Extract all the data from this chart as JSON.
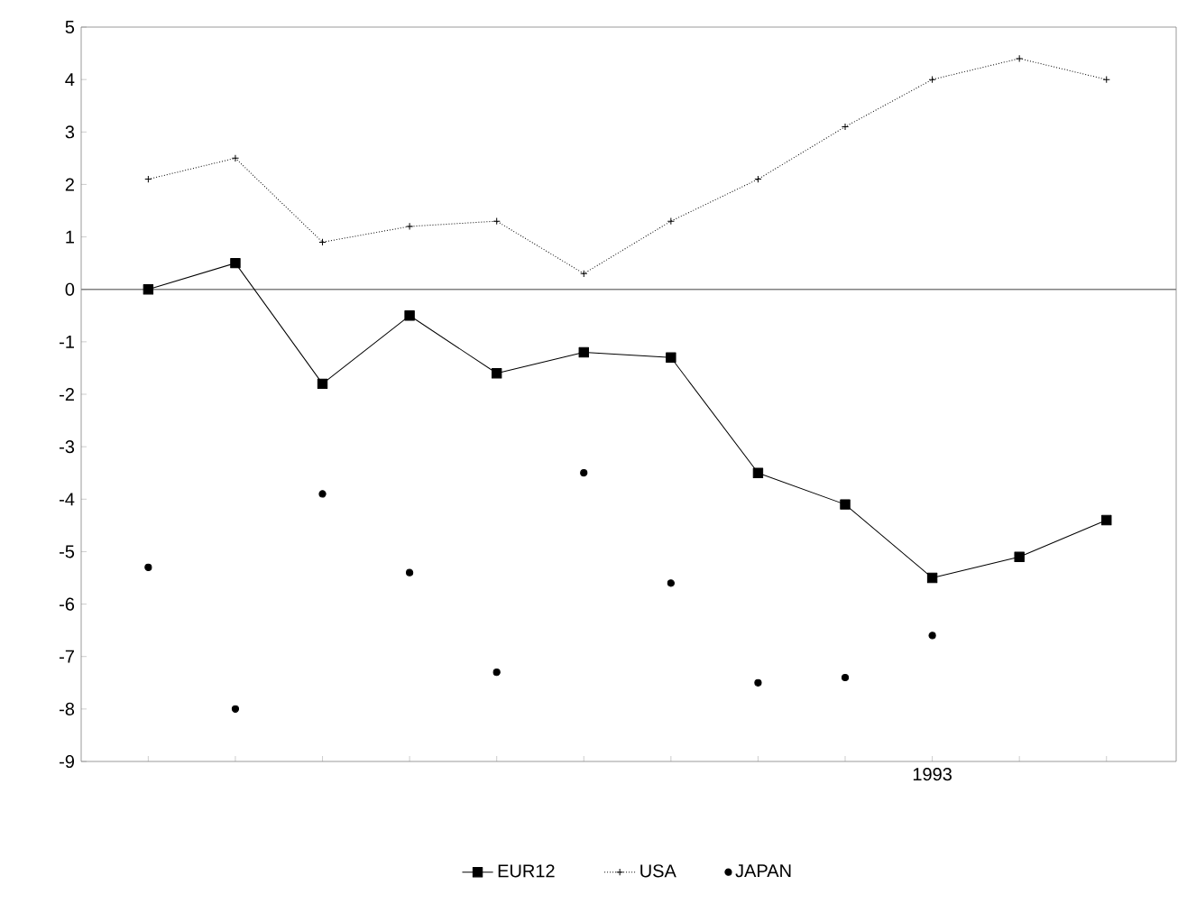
{
  "chart_data": {
    "type": "line",
    "categories": [
      null,
      null,
      null,
      null,
      null,
      null,
      null,
      null,
      null,
      "1993",
      null,
      null
    ],
    "series": [
      {
        "name": "EUR12",
        "color": "#000000",
        "marker": "square",
        "line_style": "solid",
        "values": [
          0,
          0.5,
          -1.8,
          -0.5,
          -1.6,
          -1.2,
          -1.3,
          -3.5,
          -4.1,
          -5.5,
          -5.1,
          -4.4
        ]
      },
      {
        "name": "USA",
        "color": "#000000",
        "marker": "cross",
        "line_style": "dotted",
        "values": [
          2.1,
          2.5,
          0.9,
          1.2,
          1.3,
          0.3,
          1.3,
          2.1,
          3.1,
          4.0,
          4.4,
          4.0
        ]
      },
      {
        "name": "JAPAN",
        "color": "#000000",
        "type": "scatter",
        "marker": "circle",
        "values": [
          -5.3,
          -8.0,
          -3.9,
          -5.4,
          -7.3,
          -3.5,
          -5.6,
          -7.5,
          -7.4,
          -6.6,
          null,
          null
        ]
      }
    ],
    "ylim": [
      -9,
      5
    ],
    "yticks": [
      -9,
      -8,
      -7,
      -6,
      -5,
      -4,
      -3,
      -2,
      -1,
      0,
      1,
      2,
      3,
      4,
      5
    ],
    "ref_lines": [
      {
        "axis": "y",
        "value": 0
      }
    ],
    "legend": "bottom",
    "grid": false
  }
}
